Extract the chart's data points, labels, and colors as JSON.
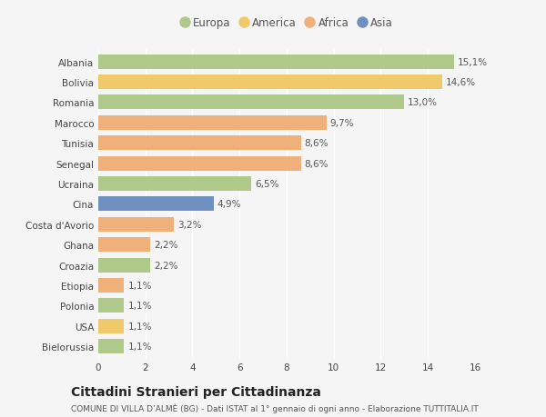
{
  "categories": [
    "Albania",
    "Bolivia",
    "Romania",
    "Marocco",
    "Tunisia",
    "Senegal",
    "Ucraina",
    "Cina",
    "Costa d'Avorio",
    "Ghana",
    "Croazia",
    "Etiopia",
    "Polonia",
    "USA",
    "Bielorussia"
  ],
  "values": [
    15.1,
    14.6,
    13.0,
    9.7,
    8.6,
    8.6,
    6.5,
    4.9,
    3.2,
    2.2,
    2.2,
    1.1,
    1.1,
    1.1,
    1.1
  ],
  "labels": [
    "15,1%",
    "14,6%",
    "13,0%",
    "9,7%",
    "8,6%",
    "8,6%",
    "6,5%",
    "4,9%",
    "3,2%",
    "2,2%",
    "2,2%",
    "1,1%",
    "1,1%",
    "1,1%",
    "1,1%"
  ],
  "colors": [
    "#aec98a",
    "#f0c96a",
    "#aec98a",
    "#f0b07a",
    "#f0b07a",
    "#f0b07a",
    "#aec98a",
    "#7090c0",
    "#f0b07a",
    "#f0b07a",
    "#aec98a",
    "#f0b07a",
    "#aec98a",
    "#f0c96a",
    "#aec98a"
  ],
  "legend": [
    {
      "label": "Europa",
      "color": "#aec98a"
    },
    {
      "label": "America",
      "color": "#f0c96a"
    },
    {
      "label": "Africa",
      "color": "#f0b07a"
    },
    {
      "label": "Asia",
      "color": "#7090c0"
    }
  ],
  "title": "Cittadini Stranieri per Cittadinanza",
  "subtitle": "COMUNE DI VILLA D’ALMÈ (BG) - Dati ISTAT al 1° gennaio di ogni anno - Elaborazione TUTTITALIA.IT",
  "xlim": [
    0,
    16
  ],
  "xticks": [
    0,
    2,
    4,
    6,
    8,
    10,
    12,
    14,
    16
  ],
  "bg_color": "#f5f5f5",
  "bar_height": 0.72,
  "label_fontsize": 7.5,
  "tick_fontsize": 7.5,
  "title_fontsize": 10,
  "subtitle_fontsize": 6.5
}
